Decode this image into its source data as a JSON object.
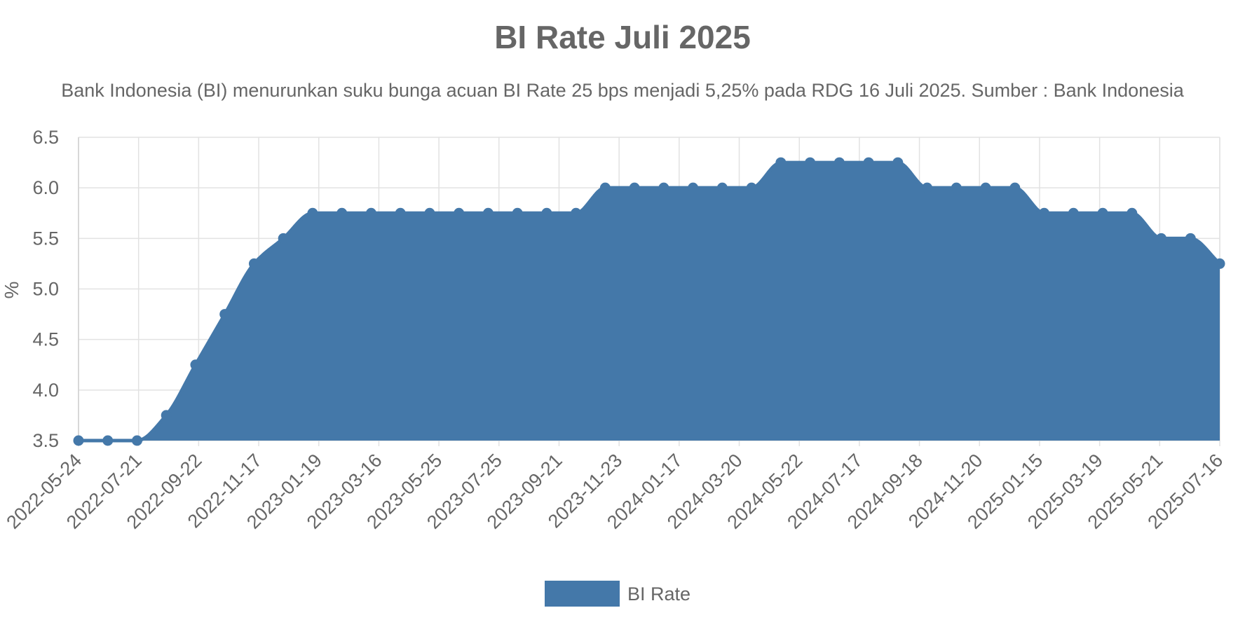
{
  "chart_data": {
    "type": "area",
    "title": "BI Rate Juli 2025",
    "subtitle": "Bank Indonesia (BI) menurunkan suku bunga acuan BI Rate 25 bps menjadi 5,25% pada RDG 16 Juli 2025. Sumber : Bank Indonesia",
    "ylabel": "%",
    "ylim": [
      3.5,
      6.5
    ],
    "y_ticks": [
      "3.5",
      "4.0",
      "4.5",
      "5.0",
      "5.5",
      "6.0",
      "6.5"
    ],
    "x_tick_labels": [
      "2022-05-24",
      "2022-07-21",
      "2022-09-22",
      "2022-11-17",
      "2023-01-19",
      "2023-03-16",
      "2023-05-25",
      "2023-07-25",
      "2023-09-21",
      "2023-11-23",
      "2024-01-17",
      "2024-03-20",
      "2024-05-22",
      "2024-07-17",
      "2024-09-18",
      "2024-11-20",
      "2025-01-15",
      "2025-03-19",
      "2025-05-21",
      "2025-07-16"
    ],
    "grid": true,
    "legend_position": "bottom",
    "series": [
      {
        "name": "BI Rate",
        "color": "#4478a9",
        "values": [
          3.5,
          3.5,
          3.5,
          3.75,
          4.25,
          4.75,
          5.25,
          5.5,
          5.75,
          5.75,
          5.75,
          5.75,
          5.75,
          5.75,
          5.75,
          5.75,
          5.75,
          5.75,
          6.0,
          6.0,
          6.0,
          6.0,
          6.0,
          6.0,
          6.25,
          6.25,
          6.25,
          6.25,
          6.25,
          6.0,
          6.0,
          6.0,
          6.0,
          5.75,
          5.75,
          5.75,
          5.75,
          5.5,
          5.5,
          5.25
        ]
      }
    ]
  }
}
